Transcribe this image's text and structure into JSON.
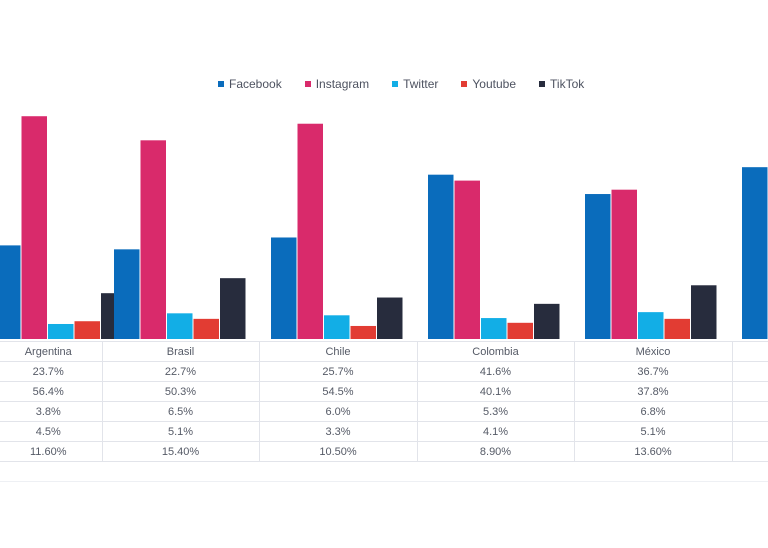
{
  "chart_data": {
    "type": "bar",
    "title": "",
    "xlabel": "",
    "ylabel": "",
    "ylim": [
      0,
      60
    ],
    "grid": false,
    "legend_position": "top",
    "categories": [
      "Argentina",
      "Brasil",
      "Chile",
      "Colombia",
      "México",
      ""
    ],
    "series": [
      {
        "name": "Facebook",
        "color": "#0a6cbc",
        "values": [
          23.7,
          22.7,
          25.7,
          41.6,
          36.7,
          43.5
        ],
        "labels": [
          "23.7%",
          "22.7%",
          "25.7%",
          "41.6%",
          "36.7%",
          ""
        ]
      },
      {
        "name": "Instagram",
        "color": "#d92a6b",
        "values": [
          56.4,
          50.3,
          54.5,
          40.1,
          37.8,
          null
        ],
        "labels": [
          "56.4%",
          "50.3%",
          "54.5%",
          "40.1%",
          "37.8%",
          ""
        ]
      },
      {
        "name": "Twitter",
        "color": "#12aee6",
        "values": [
          3.8,
          6.5,
          6.0,
          5.3,
          6.8,
          null
        ],
        "labels": [
          "3.8%",
          "6.5%",
          "6.0%",
          "5.3%",
          "6.8%",
          ""
        ]
      },
      {
        "name": "Youtube",
        "color": "#e23c33",
        "values": [
          4.5,
          5.1,
          3.3,
          4.1,
          5.1,
          null
        ],
        "labels": [
          "4.5%",
          "5.1%",
          "3.3%",
          "4.1%",
          "5.1%",
          ""
        ]
      },
      {
        "name": "TikTok",
        "color": "#272c3d",
        "values": [
          11.6,
          15.4,
          10.5,
          8.9,
          13.6,
          null
        ],
        "labels": [
          "11.60%",
          "15.40%",
          "10.50%",
          "8.90%",
          "13.60%",
          ""
        ]
      }
    ]
  }
}
